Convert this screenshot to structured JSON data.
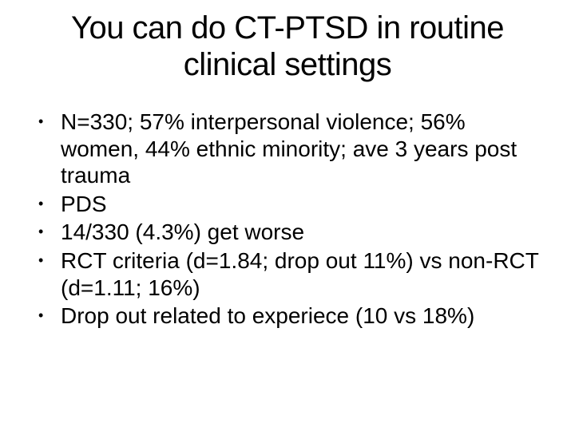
{
  "slide": {
    "title": "You can do CT-PTSD in routine clinical settings",
    "bullets": [
      "N=330; 57% interpersonal violence; 56% women, 44% ethnic minority; ave 3 years post trauma",
      "PDS",
      "14/330 (4.3%) get worse",
      "RCT criteria (d=1.84; drop out 11%) vs non-RCT (d=1.11; 16%)",
      "Drop out related to experiece (10 vs 18%)"
    ]
  },
  "style": {
    "background_color": "#ffffff",
    "text_color": "#000000",
    "title_fontsize": 40,
    "bullet_fontsize": 28,
    "font_family": "Arial"
  }
}
